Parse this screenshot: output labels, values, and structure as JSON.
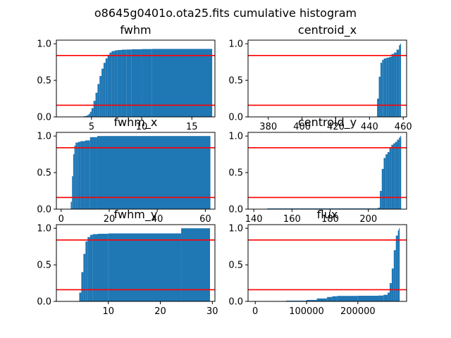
{
  "figure": {
    "suptitle": "o8645g0401o.ota25.fits cumulative histogram",
    "bar_color": "#1f77b4",
    "line_color": "#ff0000",
    "edge_color": "#000000"
  },
  "chart_data": [
    {
      "type": "bar",
      "title": "fwhm",
      "xlim": [
        1.5,
        17.3
      ],
      "ylim": [
        0,
        1.05
      ],
      "xticks": [
        5,
        10,
        15
      ],
      "xtick_labels": [
        "5",
        "10",
        "15"
      ],
      "yticks": [
        0,
        0.5,
        1
      ],
      "ytick_labels": [
        "0.0",
        "0.5",
        "1.0"
      ],
      "hlines": [
        0.16,
        0.84
      ],
      "cumulative": {
        "x": [
          3.8,
          4.2,
          4.5,
          4.7,
          4.85,
          5.0,
          5.2,
          5.4,
          5.6,
          5.8,
          6.0,
          6.2,
          6.4,
          6.6,
          6.8,
          7.0,
          7.3,
          7.6,
          8.0,
          8.5,
          9.0,
          10.0,
          11.0,
          17.0
        ],
        "y": [
          0.0,
          0.01,
          0.02,
          0.04,
          0.07,
          0.12,
          0.22,
          0.33,
          0.45,
          0.56,
          0.66,
          0.74,
          0.8,
          0.85,
          0.88,
          0.9,
          0.91,
          0.915,
          0.92,
          0.922,
          0.925,
          0.928,
          0.93,
          0.93
        ]
      }
    },
    {
      "type": "bar",
      "title": "centroid_x",
      "xlim": [
        368,
        462
      ],
      "ylim": [
        0,
        1.05
      ],
      "xticks": [
        380,
        400,
        420,
        440,
        460
      ],
      "xtick_labels": [
        "380",
        "400",
        "420",
        "440",
        "460"
      ],
      "yticks": [
        0,
        0.5,
        1
      ],
      "ytick_labels": [
        "0.0",
        "0.5",
        "1.0"
      ],
      "hlines": [
        0.16,
        0.84
      ],
      "cumulative": {
        "x": [
          443.5,
          444.5,
          445.5,
          446.5,
          447.5,
          448.5,
          450,
          451.5,
          453,
          454.5,
          456,
          457.5,
          458.5
        ],
        "y": [
          0.0,
          0.25,
          0.55,
          0.74,
          0.78,
          0.8,
          0.81,
          0.82,
          0.86,
          0.88,
          0.92,
          0.98,
          1.0
        ]
      }
    },
    {
      "type": "bar",
      "title": "fwhm_x",
      "xlim": [
        -2,
        64
      ],
      "ylim": [
        0,
        1.05
      ],
      "xticks": [
        0,
        20,
        40,
        60
      ],
      "xtick_labels": [
        "0",
        "20",
        "40",
        "60"
      ],
      "yticks": [
        0,
        0.5,
        1
      ],
      "ytick_labels": [
        "0.0",
        "0.5",
        "1.0"
      ],
      "hlines": [
        0.16,
        0.84
      ],
      "cumulative": {
        "x": [
          3.5,
          4.0,
          4.5,
          5.0,
          5.5,
          6.0,
          7.0,
          8.0,
          10.0,
          12.0,
          15.0,
          62.0
        ],
        "y": [
          0.0,
          0.1,
          0.45,
          0.75,
          0.87,
          0.91,
          0.92,
          0.93,
          0.94,
          0.985,
          1.0,
          1.0
        ]
      }
    },
    {
      "type": "bar",
      "title": "centroid_y",
      "xlim": [
        137,
        220
      ],
      "ylim": [
        0,
        1.05
      ],
      "xticks": [
        140,
        160,
        180,
        200
      ],
      "xtick_labels": [
        "140",
        "160",
        "180",
        "200"
      ],
      "yticks": [
        0,
        0.5,
        1
      ],
      "ytick_labels": [
        "0.0",
        "0.5",
        "1.0"
      ],
      "hlines": [
        0.16,
        0.84
      ],
      "cumulative": {
        "x": [
          146,
          147,
          205,
          206,
          207,
          208,
          209,
          210,
          211,
          212,
          213,
          214,
          215,
          216,
          217
        ],
        "y": [
          0.0,
          0.01,
          0.02,
          0.25,
          0.55,
          0.7,
          0.75,
          0.78,
          0.84,
          0.88,
          0.9,
          0.92,
          0.95,
          0.98,
          1.0
        ]
      }
    },
    {
      "type": "bar",
      "title": "fwhm_y",
      "xlim": [
        0,
        30.5
      ],
      "ylim": [
        0,
        1.05
      ],
      "xticks": [
        10,
        20,
        30
      ],
      "xtick_labels": [
        "10",
        "20",
        "30"
      ],
      "yticks": [
        0,
        0.5,
        1
      ],
      "ytick_labels": [
        "0.0",
        "0.5",
        "1.0"
      ],
      "hlines": [
        0.16,
        0.84
      ],
      "cumulative": {
        "x": [
          4.0,
          4.4,
          4.8,
          5.2,
          5.6,
          6.0,
          6.5,
          7.0,
          8.0,
          10.0,
          24.0,
          29.5
        ],
        "y": [
          0.0,
          0.12,
          0.4,
          0.65,
          0.82,
          0.88,
          0.91,
          0.92,
          0.925,
          0.93,
          1.0,
          1.0
        ]
      }
    },
    {
      "type": "bar",
      "title": "flux",
      "xlim": [
        -14000,
        295000
      ],
      "ylim": [
        0,
        1.05
      ],
      "xticks": [
        0,
        100000,
        200000
      ],
      "xtick_labels": [
        "0",
        "100000",
        "200000"
      ],
      "yticks": [
        0,
        0.5,
        1
      ],
      "ytick_labels": [
        "0.0",
        "0.5",
        "1.0"
      ],
      "hlines": [
        0.16,
        0.84
      ],
      "cumulative": {
        "x": [
          2000,
          20000,
          60000,
          100000,
          120000,
          140000,
          150000,
          160000,
          200000,
          240000,
          250000,
          258000,
          262000,
          266000,
          270000,
          274000,
          278000,
          281000
        ],
        "y": [
          0.0,
          0.005,
          0.01,
          0.02,
          0.04,
          0.06,
          0.07,
          0.075,
          0.077,
          0.08,
          0.09,
          0.12,
          0.25,
          0.45,
          0.7,
          0.9,
          0.97,
          1.0
        ]
      }
    }
  ]
}
